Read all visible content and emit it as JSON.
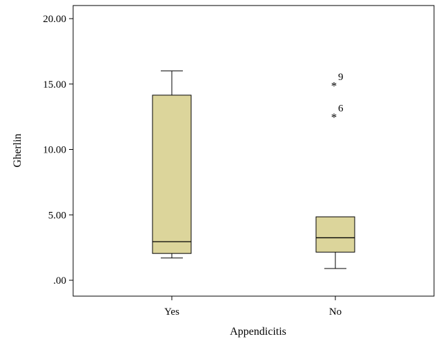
{
  "chart_data": {
    "type": "boxplot",
    "xlabel": "Appendicitis",
    "ylabel": "Gherlin",
    "ylim": [
      0,
      21
    ],
    "y_ticks": [
      0,
      5,
      10,
      15,
      20
    ],
    "y_tick_labels": [
      ".00",
      "5.00",
      "10.00",
      "15.00",
      "20.00"
    ],
    "grid": false,
    "box_color": "#dcd59b",
    "categories": [
      "Yes",
      "No"
    ],
    "boxes": [
      {
        "category": "Yes",
        "whisker_low": 1.7,
        "q1": 2.05,
        "median": 2.95,
        "q3": 14.15,
        "whisker_high": 16.0,
        "outliers": []
      },
      {
        "category": "No",
        "whisker_low": 0.9,
        "q1": 2.15,
        "median": 3.25,
        "q3": 4.85,
        "whisker_high": 4.85,
        "outliers": [
          {
            "value": 15.1,
            "marker": "*",
            "label": "9"
          },
          {
            "value": 12.7,
            "marker": "*",
            "label": "6"
          }
        ]
      }
    ]
  }
}
